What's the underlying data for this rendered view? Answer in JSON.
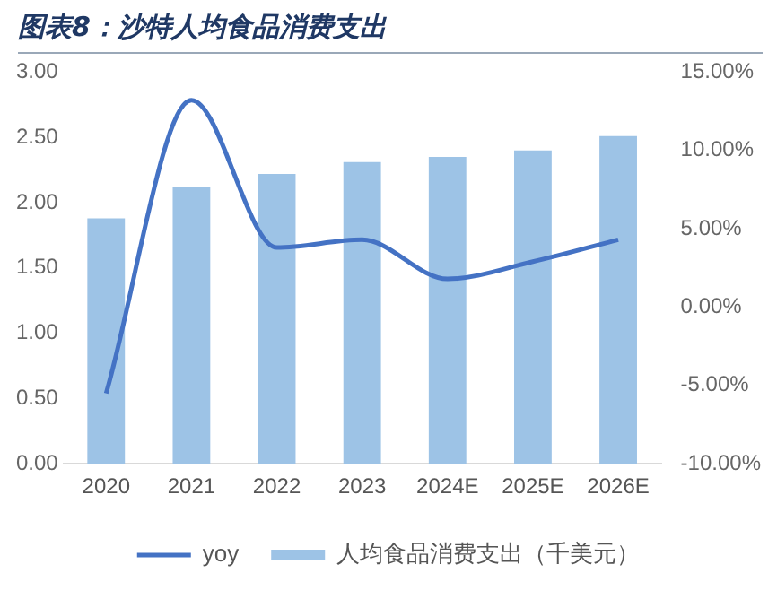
{
  "chart_data": {
    "type": "bar",
    "title": "图表8：沙特人均食品消费支出",
    "categories": [
      "2020",
      "2021",
      "2022",
      "2023",
      "2024E",
      "2025E",
      "2026E"
    ],
    "series": [
      {
        "name": "人均食品消费支出（千美元）",
        "color": "#9dc3e6",
        "values": [
          1.88,
          2.12,
          2.22,
          2.31,
          2.35,
          2.4,
          2.51
        ]
      },
      {
        "name": "yoy",
        "type": "line",
        "axis": "y2",
        "color": "#4472c4",
        "values": [
          -5.5,
          13.2,
          3.8,
          4.3,
          1.8,
          2.9,
          4.3
        ]
      }
    ],
    "ylim": [
      0,
      3
    ],
    "yticks": [
      {
        "value": 0,
        "label": "0.00"
      },
      {
        "value": 0.5,
        "label": "0.50"
      },
      {
        "value": 1,
        "label": "1.00"
      },
      {
        "value": 1.5,
        "label": "1.50"
      },
      {
        "value": 2,
        "label": "2.00"
      },
      {
        "value": 2.5,
        "label": "2.50"
      },
      {
        "value": 3,
        "label": "3.00"
      }
    ],
    "y2lim": [
      -10,
      15
    ],
    "y2ticks": [
      {
        "value": -10,
        "label": "-10.00%"
      },
      {
        "value": -5,
        "label": "-5.00%"
      },
      {
        "value": 0,
        "label": "0.00%"
      },
      {
        "value": 5,
        "label": "5.00%"
      },
      {
        "value": 10,
        "label": "10.00%"
      },
      {
        "value": 15,
        "label": "15.00%"
      }
    ],
    "grid": false,
    "legend": "bottom",
    "marker": "none",
    "line_style": "solid"
  }
}
